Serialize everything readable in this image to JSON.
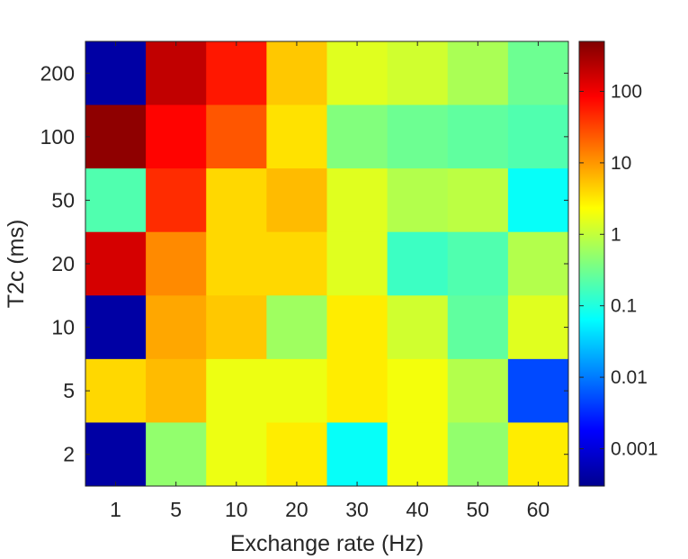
{
  "chart_data": {
    "type": "heatmap",
    "xlabel": "Exchange rate (Hz)",
    "ylabel": "T2c (ms)",
    "x_categories": [
      "1",
      "5",
      "10",
      "20",
      "30",
      "40",
      "50",
      "60"
    ],
    "y_categories": [
      "200",
      "100",
      "50",
      "20",
      "10",
      "5",
      "2"
    ],
    "values": [
      [
        0.0005,
        200,
        60,
        5,
        1.5,
        1.2,
        0.7,
        0.3
      ],
      [
        400,
        80,
        25,
        3.5,
        0.4,
        0.3,
        0.25,
        0.2
      ],
      [
        0.2,
        45,
        4,
        6,
        1.5,
        0.8,
        0.9,
        0.07
      ],
      [
        150,
        12,
        4,
        4,
        1.5,
        0.15,
        0.2,
        0.8
      ],
      [
        0.0005,
        8,
        5,
        0.6,
        3,
        1.2,
        0.25,
        1.5
      ],
      [
        4,
        6,
        1.8,
        1.8,
        3,
        2,
        0.8,
        0.005
      ],
      [
        0.0005,
        0.5,
        1.8,
        3,
        0.07,
        2,
        0.5,
        3
      ]
    ],
    "colorbar": {
      "scale": "log",
      "colormap": "jet",
      "min": 0.0003,
      "max": 500,
      "tick_values": [
        0.001,
        0.01,
        0.1,
        1,
        10,
        100
      ],
      "tick_labels": [
        "0.001",
        "0.01",
        "0.1",
        "1",
        "10",
        "100"
      ]
    }
  }
}
